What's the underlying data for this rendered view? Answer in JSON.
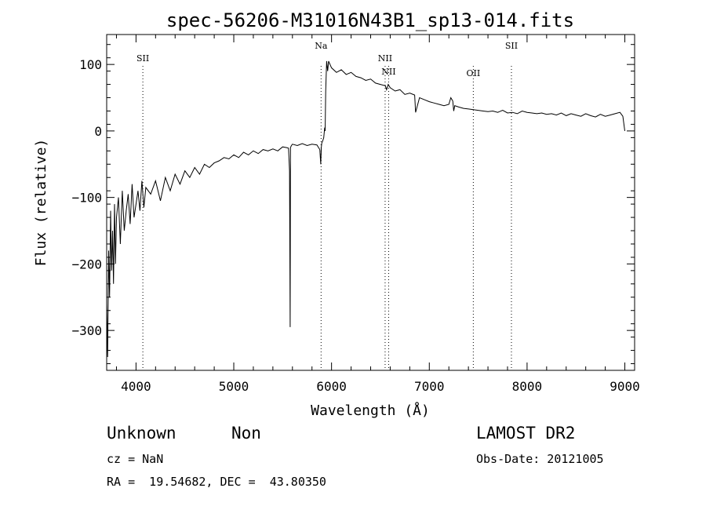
{
  "chart_data": {
    "type": "line",
    "title": "spec-56206-M31016N43B1_sp13-014.fits",
    "xlabel": "Wavelength (Å)",
    "ylabel": "Flux (relative)",
    "xlim": [
      3700,
      9100
    ],
    "ylim": [
      -360,
      145
    ],
    "xticks": [
      "4000",
      "5000",
      "6000",
      "7000",
      "8000",
      "9000"
    ],
    "yticks": [
      "100",
      "0",
      "−100",
      "−200",
      "−300"
    ],
    "xtick_values": [
      4000,
      5000,
      6000,
      7000,
      8000,
      9000
    ],
    "ytick_values": [
      100,
      0,
      -100,
      -200,
      -300
    ],
    "grid": false,
    "series": [
      {
        "x": [
          3700,
          3710,
          3720,
          3730,
          3740,
          3750,
          3760,
          3770,
          3780,
          3790,
          3800,
          3820,
          3840,
          3860,
          3880,
          3900,
          3920,
          3940,
          3960,
          3980,
          4000,
          4020,
          4040,
          4060,
          4080,
          4100,
          4150,
          4200,
          4250,
          4300,
          4350,
          4400,
          4450,
          4500,
          4550,
          4600,
          4650,
          4700,
          4750,
          4800,
          4850,
          4900,
          4950,
          5000,
          5050,
          5100,
          5150,
          5200,
          5250,
          5300,
          5350,
          5400,
          5450,
          5500,
          5540,
          5560,
          5570,
          5577,
          5580,
          5590,
          5600,
          5650,
          5700,
          5750,
          5800,
          5850,
          5880,
          5890,
          5895,
          5900,
          5910,
          5920,
          5930,
          5935,
          5940,
          5950,
          5960,
          5970,
          6000,
          6050,
          6100,
          6150,
          6200,
          6250,
          6300,
          6350,
          6400,
          6450,
          6500,
          6550,
          6563,
          6580,
          6600,
          6650,
          6700,
          6750,
          6800,
          6850,
          6860,
          6900,
          6950,
          7000,
          7050,
          7100,
          7150,
          7200,
          7220,
          7240,
          7250,
          7260,
          7300,
          7350,
          7400,
          7450,
          7500,
          7550,
          7600,
          7650,
          7700,
          7750,
          7800,
          7850,
          7900,
          7950,
          8000,
          8050,
          8100,
          8150,
          8200,
          8250,
          8300,
          8350,
          8400,
          8450,
          8500,
          8550,
          8600,
          8650,
          8700,
          8750,
          8800,
          8850,
          8900,
          8950,
          8980,
          9000
        ],
        "y": [
          -260,
          -340,
          -180,
          -250,
          -120,
          -210,
          -150,
          -230,
          -110,
          -200,
          -130,
          -100,
          -170,
          -90,
          -150,
          -120,
          -95,
          -140,
          -80,
          -130,
          -110,
          -90,
          -120,
          -75,
          -115,
          -85,
          -95,
          -75,
          -105,
          -70,
          -90,
          -65,
          -80,
          -60,
          -70,
          -55,
          -65,
          -50,
          -55,
          -48,
          -45,
          -40,
          -42,
          -36,
          -40,
          -32,
          -36,
          -30,
          -34,
          -28,
          -30,
          -27,
          -30,
          -24,
          -25,
          -26,
          -60,
          -295,
          -25,
          -22,
          -20,
          -22,
          -19,
          -22,
          -20,
          -21,
          -28,
          -50,
          -25,
          -18,
          -15,
          -10,
          5,
          0,
          60,
          105,
          90,
          105,
          95,
          88,
          92,
          85,
          88,
          82,
          80,
          76,
          78,
          72,
          70,
          68,
          62,
          70,
          65,
          60,
          62,
          55,
          57,
          54,
          28,
          50,
          47,
          44,
          42,
          40,
          38,
          40,
          50,
          45,
          30,
          38,
          36,
          34,
          33,
          32,
          31,
          30,
          29,
          30,
          28,
          31,
          27,
          28,
          26,
          30,
          28,
          27,
          26,
          27,
          25,
          26,
          24,
          27,
          23,
          26,
          24,
          22,
          26,
          23,
          21,
          25,
          22,
          24,
          26,
          28,
          22,
          0
        ]
      }
    ],
    "lines": [
      {
        "label": "SII",
        "x": 4070
      },
      {
        "label": "Na",
        "x": 5893
      },
      {
        "label": "NII",
        "x": 6548
      },
      {
        "label": "NII",
        "x": 6584
      },
      {
        "label": "OII",
        "x": 7450
      },
      {
        "label": "SII",
        "x": 7840
      }
    ]
  },
  "info": {
    "object_class": "Unknown",
    "subclass": "Non",
    "survey": "LAMOST DR2",
    "cz": "cz = NaN",
    "obs_date": "Obs-Date: 20121005",
    "coords": "RA =  19.54682, DEC =  43.80350"
  }
}
